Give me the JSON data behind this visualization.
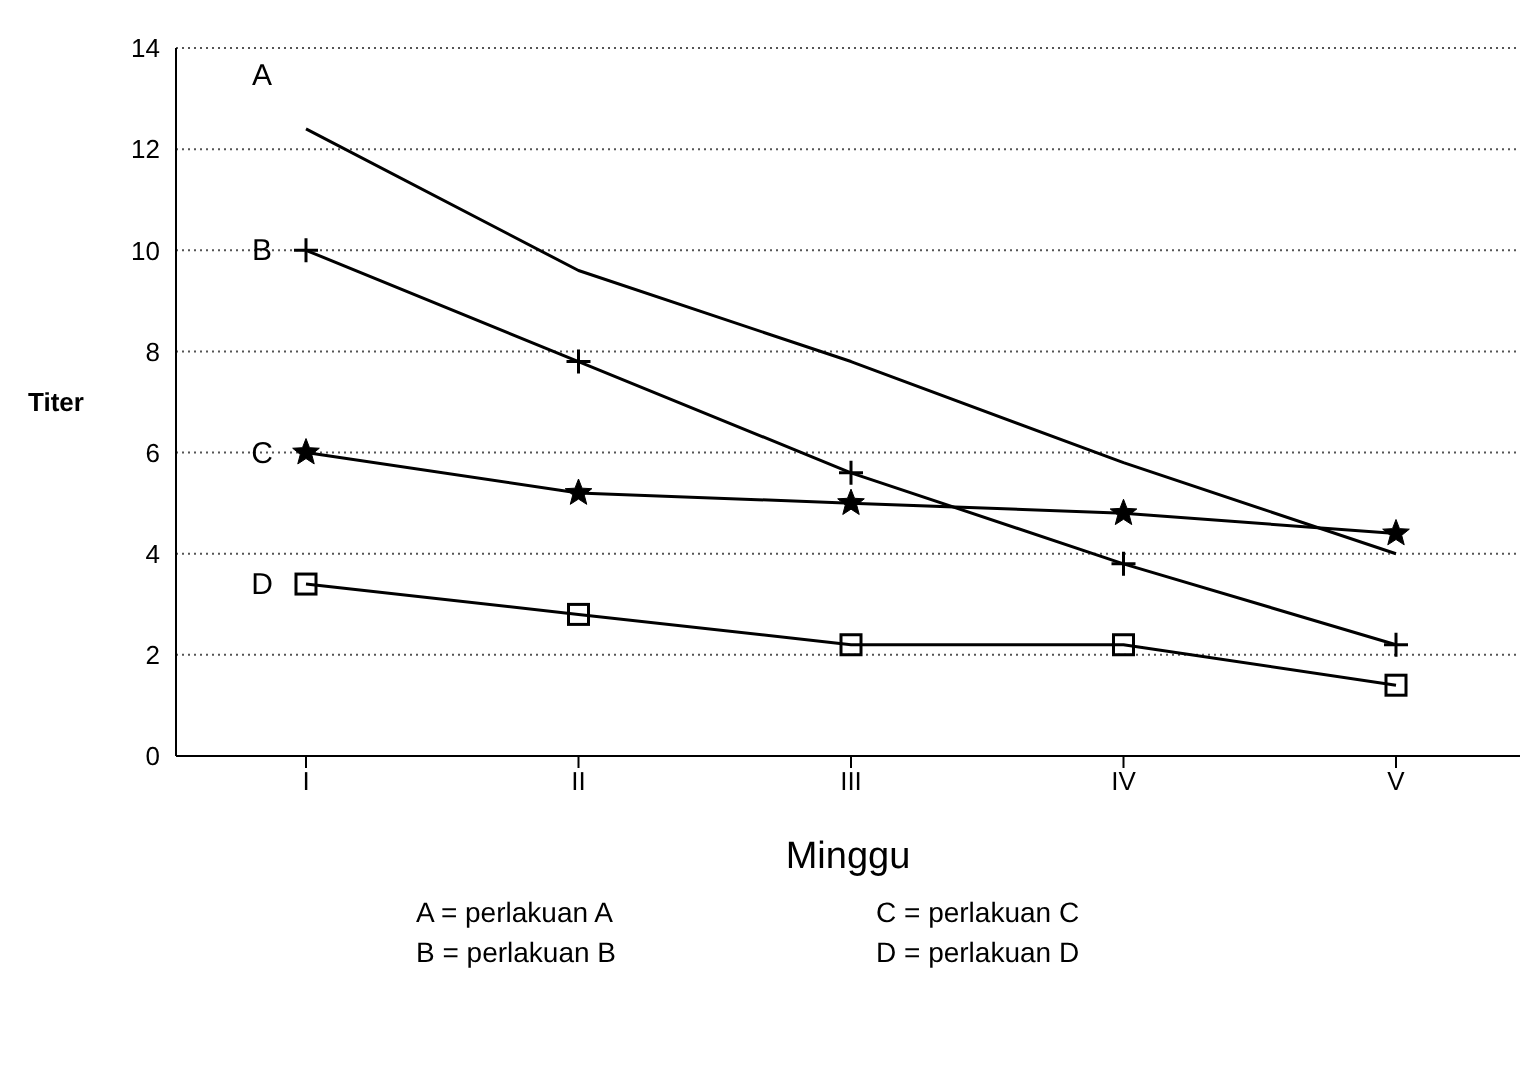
{
  "chart_data": {
    "type": "line",
    "xlabel": "Minggu",
    "ylabel": "Titer",
    "categories": [
      "I",
      "II",
      "III",
      "IV",
      "V"
    ],
    "series": [
      {
        "name": "A",
        "color": "#000000",
        "marker": "none",
        "values": [
          12.4,
          9.6,
          7.8,
          5.8,
          4.0
        ]
      },
      {
        "name": "B",
        "color": "#000000",
        "marker": "cross",
        "values": [
          10,
          7.8,
          5.6,
          3.8,
          2.2
        ]
      },
      {
        "name": "C",
        "color": "#000000",
        "marker": "star",
        "values": [
          6,
          5.2,
          5.0,
          4.8,
          4.4
        ]
      },
      {
        "name": "D",
        "color": "#000000",
        "marker": "square",
        "values": [
          3.4,
          2.8,
          2.2,
          2.2,
          1.4
        ]
      }
    ],
    "ylim": [
      0,
      14
    ],
    "yticks": [
      0,
      2,
      4,
      6,
      8,
      10,
      12,
      14
    ],
    "grid": "y",
    "legend": false,
    "line_style": "solid",
    "annotations": [
      "A = perlakuan A",
      "C = perlakuan C",
      "B = perlakuan B",
      "D = perlakuan D"
    ]
  }
}
